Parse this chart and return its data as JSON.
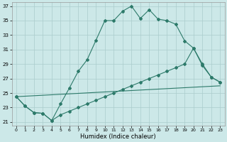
{
  "xlabel": "Humidex (Indice chaleur)",
  "xlim": [
    -0.5,
    23.5
  ],
  "ylim": [
    20.5,
    37.5
  ],
  "yticks": [
    21,
    23,
    25,
    27,
    29,
    31,
    33,
    35,
    37
  ],
  "xticks": [
    0,
    1,
    2,
    3,
    4,
    5,
    6,
    7,
    8,
    9,
    10,
    11,
    12,
    13,
    14,
    15,
    16,
    17,
    18,
    19,
    20,
    21,
    22,
    23
  ],
  "bg_color": "#cce8e8",
  "grid_color": "#aacccc",
  "line_color": "#2d7a6a",
  "curve1_x": [
    0,
    1,
    2,
    3,
    4,
    5,
    6,
    7,
    8,
    9,
    10,
    11,
    12,
    13,
    14,
    15,
    16,
    17,
    18,
    19,
    20,
    21,
    22,
    23
  ],
  "curve1_y": [
    24.5,
    23.2,
    22.3,
    22.2,
    21.2,
    23.5,
    25.7,
    28.0,
    29.6,
    32.3,
    35.0,
    35.0,
    36.3,
    37.0,
    35.3,
    36.5,
    35.2,
    35.0,
    34.5,
    32.2,
    31.2,
    28.8,
    27.2,
    26.5
  ],
  "curve2_x": [
    0,
    1,
    2,
    3,
    4,
    5,
    6,
    7,
    8,
    9,
    10,
    11,
    12,
    13,
    14,
    15,
    16,
    17,
    18,
    19,
    20,
    21,
    22,
    23
  ],
  "curve2_y": [
    24.5,
    23.2,
    22.3,
    22.2,
    21.2,
    22.0,
    22.5,
    23.0,
    23.5,
    24.0,
    24.5,
    25.0,
    25.5,
    26.0,
    26.5,
    27.0,
    27.5,
    28.0,
    28.5,
    29.0,
    31.2,
    29.0,
    27.2,
    26.5
  ],
  "curve3_x": [
    0,
    23
  ],
  "curve3_y": [
    24.5,
    26.0
  ]
}
